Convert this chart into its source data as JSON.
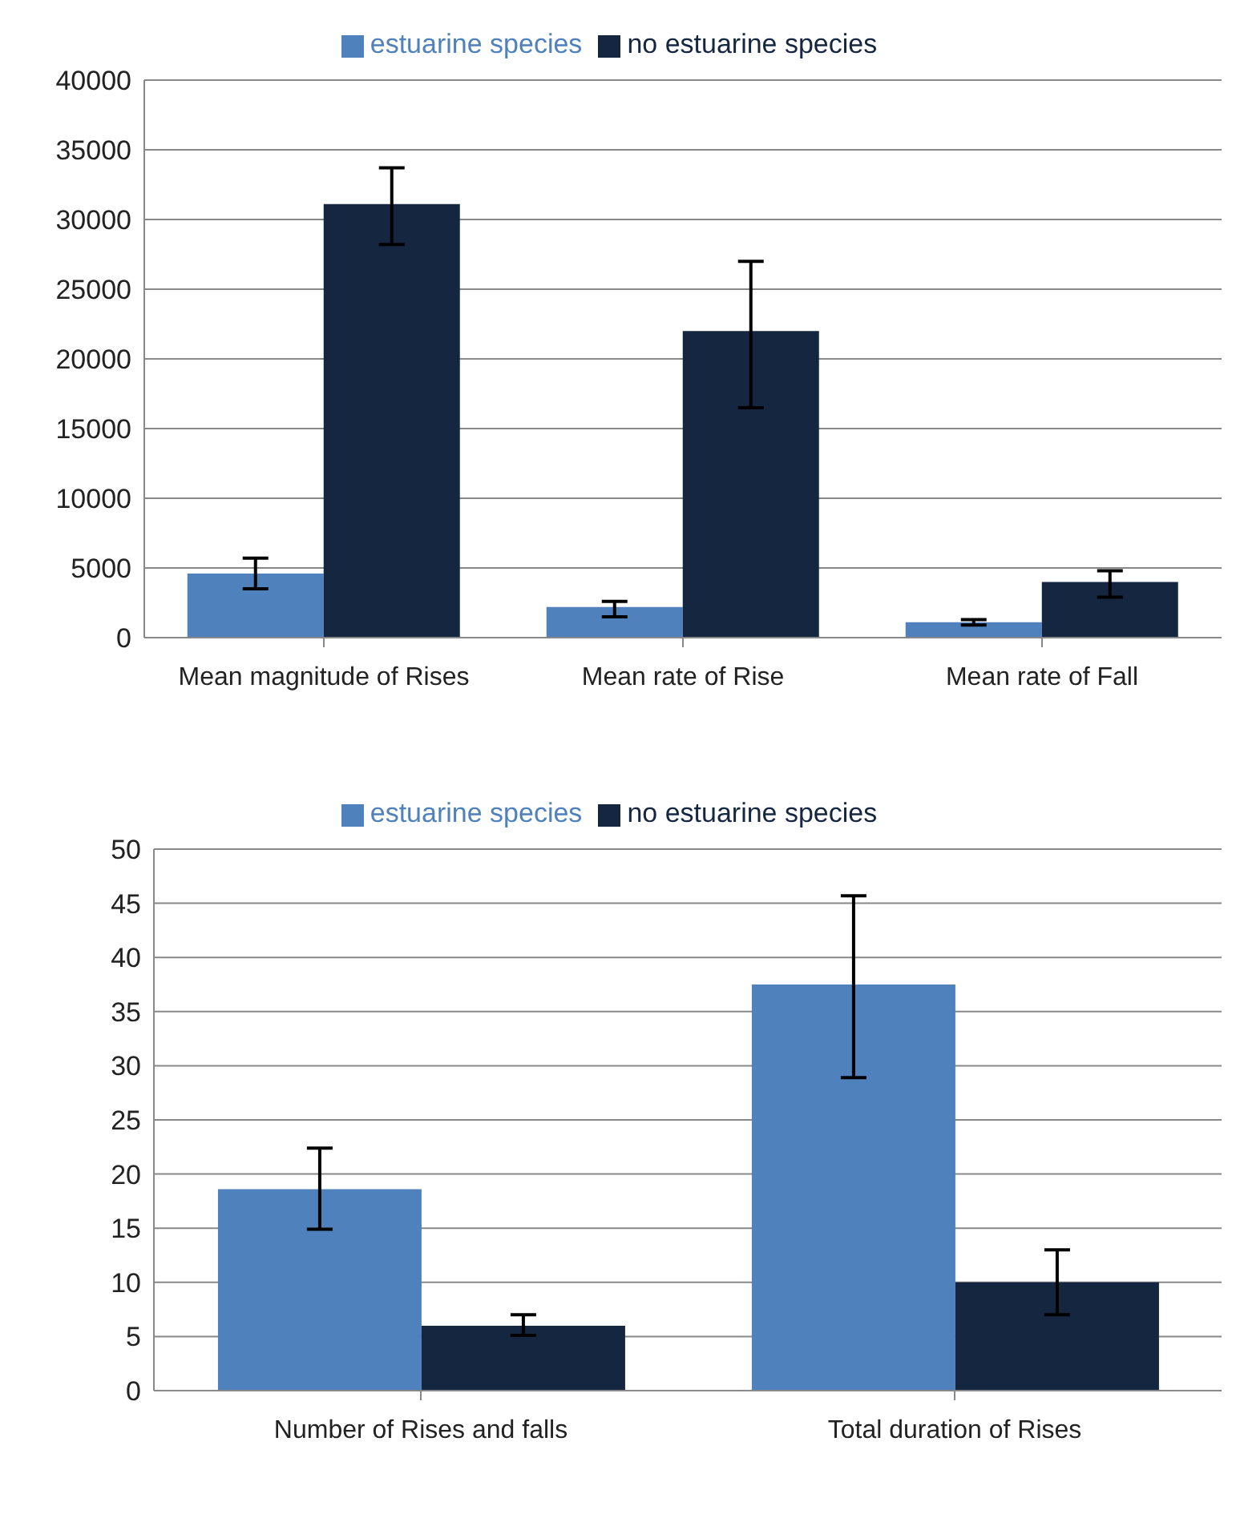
{
  "chart_data": [
    {
      "type": "bar",
      "categories": [
        "Mean magnitude  of Rises",
        "Mean rate  of Rise",
        "Mean rate  of Fall"
      ],
      "series": [
        {
          "name": "estuarine species",
          "color": "#4f81bd",
          "values": [
            4600,
            2200,
            1100
          ],
          "errors": [
            [
              3500,
              5700
            ],
            [
              1500,
              2600
            ],
            [
              900,
              1300
            ]
          ]
        },
        {
          "name": "no estuarine species",
          "color": "#142640",
          "values": [
            31100,
            22000,
            4000
          ],
          "errors": [
            [
              28200,
              33700
            ],
            [
              16500,
              27000
            ],
            [
              2900,
              4800
            ]
          ]
        }
      ],
      "ylim": [
        0,
        40000
      ],
      "yticks": [
        0,
        5000,
        10000,
        15000,
        20000,
        25000,
        30000,
        35000,
        40000
      ],
      "grid": "y",
      "legend": "top"
    },
    {
      "type": "bar",
      "categories": [
        "Number of Rises and falls",
        "Total duration of Rises"
      ],
      "series": [
        {
          "name": "estuarine species",
          "color": "#4f81bd",
          "values": [
            18.6,
            37.5
          ],
          "errors": [
            [
              14.9,
              22.4
            ],
            [
              28.9,
              45.7
            ]
          ]
        },
        {
          "name": "no estuarine species",
          "color": "#142640",
          "values": [
            6,
            10
          ],
          "errors": [
            [
              5.1,
              7.0
            ],
            [
              7,
              13
            ]
          ]
        }
      ],
      "ylim": [
        0,
        50
      ],
      "yticks": [
        0,
        5,
        10,
        15,
        20,
        25,
        30,
        35,
        40,
        45,
        50
      ],
      "grid": "y",
      "legend": "top"
    }
  ]
}
